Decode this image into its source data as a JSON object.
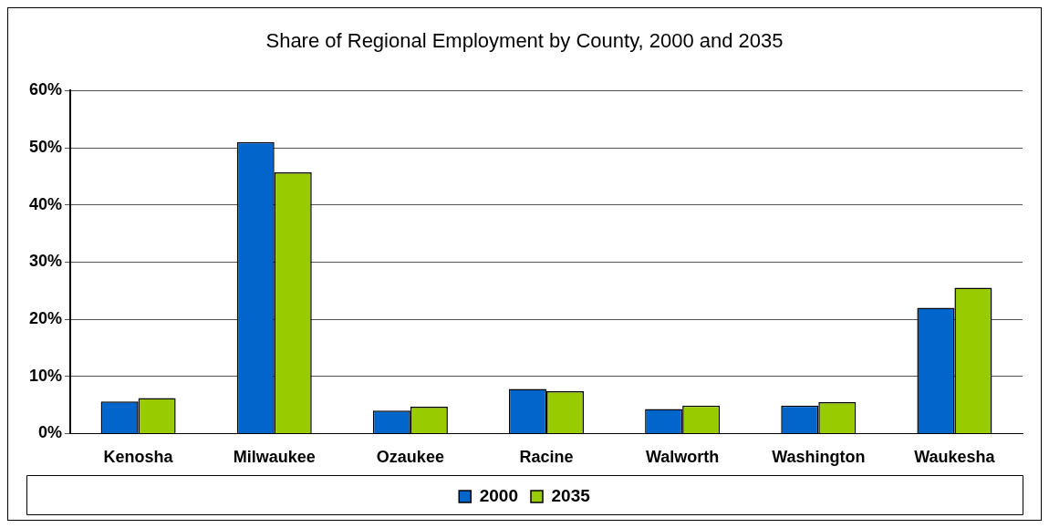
{
  "chart_data": {
    "type": "bar",
    "title": "Share of Regional Employment by County, 2000 and 2035",
    "categories": [
      "Kenosha",
      "Milwaukee",
      "Ozaukee",
      "Racine",
      "Walworth",
      "Washington",
      "Waukesha"
    ],
    "series": [
      {
        "name": "2000",
        "color": "#0066cc",
        "values": [
          5.6,
          51.0,
          4.0,
          7.8,
          4.3,
          4.9,
          22.0
        ]
      },
      {
        "name": "2035",
        "color": "#99cc00",
        "values": [
          6.2,
          45.7,
          4.7,
          7.4,
          4.9,
          5.5,
          25.5
        ]
      }
    ],
    "ylim": [
      0,
      60
    ],
    "yticks": [
      {
        "value": 0,
        "label": "0%"
      },
      {
        "value": 10,
        "label": "10%"
      },
      {
        "value": 20,
        "label": "20%"
      },
      {
        "value": 30,
        "label": "30%"
      },
      {
        "value": 40,
        "label": "40%"
      },
      {
        "value": 50,
        "label": "50%"
      },
      {
        "value": 60,
        "label": "60%"
      }
    ],
    "grid": "y",
    "legend": "bottom"
  }
}
